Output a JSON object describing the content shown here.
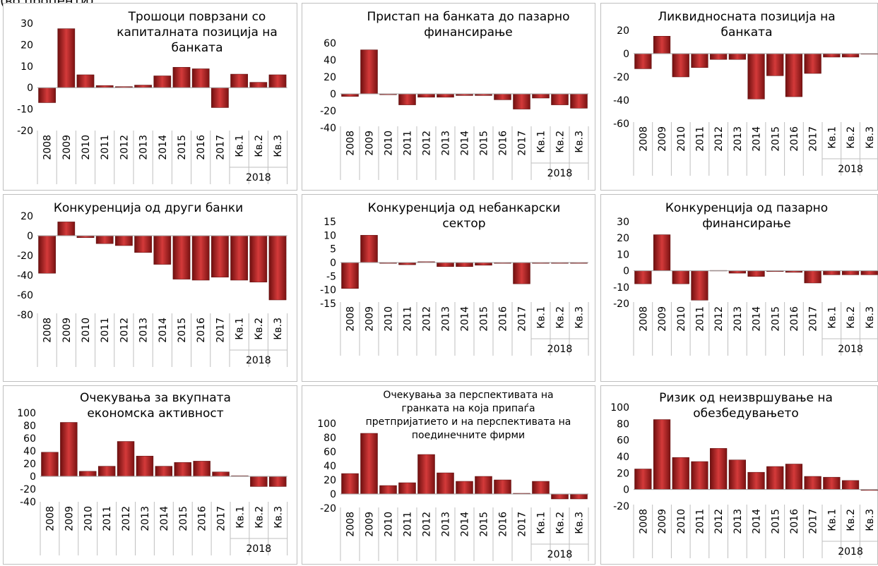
{
  "page_caption": "(во проценти)",
  "chart_data": [
    {
      "type": "bar",
      "title": [
        "Трошоци поврзани со",
        "капиталната позиција на банката"
      ],
      "categories": [
        "2008",
        "2009",
        "2010",
        "2011",
        "2012",
        "2013",
        "2014",
        "2015",
        "2016",
        "2017",
        "Кв.1",
        "Кв.2",
        "Кв.3"
      ],
      "group_label": "2018",
      "ylim": [
        -20,
        30
      ],
      "yticks": [
        30,
        20,
        10,
        0,
        -10,
        -20
      ],
      "values": [
        -7,
        27.5,
        6,
        1,
        0.5,
        1.2,
        5.5,
        9.5,
        8.8,
        -9.3,
        6.3,
        2.5,
        6
      ]
    },
    {
      "type": "bar",
      "title": [
        "Пристап на банката до пазарно",
        "финансирање"
      ],
      "categories": [
        "2008",
        "2009",
        "2010",
        "2011",
        "2012",
        "2013",
        "2014",
        "2015",
        "2016",
        "2017",
        "Кв.1",
        "Кв.2",
        "Кв.3"
      ],
      "group_label": "2018",
      "ylim": [
        -40,
        60
      ],
      "yticks": [
        60,
        40,
        20,
        0,
        -20,
        -40
      ],
      "values": [
        -3,
        52,
        -1,
        -13,
        -4,
        -4,
        -2,
        -2,
        -7,
        -18,
        -5,
        -13,
        -17
      ]
    },
    {
      "type": "bar",
      "title": [
        "Ликвидносната позиција на",
        "банката"
      ],
      "categories": [
        "2008",
        "2009",
        "2010",
        "2011",
        "2012",
        "2013",
        "2014",
        "2015",
        "2016",
        "2017",
        "Кв.1",
        "Кв.2",
        "Кв.3"
      ],
      "group_label": "2018",
      "ylim": [
        -60,
        20
      ],
      "yticks": [
        20,
        0,
        -20,
        -40,
        -60
      ],
      "values": [
        -13,
        15,
        -20,
        -12,
        -5,
        -5,
        -39,
        -19,
        -37,
        -17,
        -3,
        -3,
        -0.5
      ]
    },
    {
      "type": "bar",
      "title": [
        "Конкуренција од други банки"
      ],
      "categories": [
        "2008",
        "2009",
        "2010",
        "2011",
        "2012",
        "2013",
        "2014",
        "2015",
        "2016",
        "2017",
        "Кв.1",
        "Кв.2",
        "Кв.3"
      ],
      "group_label": "2018",
      "ylim": [
        -80,
        20
      ],
      "yticks": [
        20,
        0,
        -20,
        -40,
        -60,
        -80
      ],
      "values": [
        -38,
        14,
        -2,
        -8,
        -10,
        -17,
        -29,
        -44,
        -45,
        -42,
        -45,
        -47,
        -65
      ]
    },
    {
      "type": "bar",
      "title": [
        "Конкуренција од небанкарски",
        "сектор"
      ],
      "categories": [
        "2008",
        "2009",
        "2010",
        "2011",
        "2012",
        "2013",
        "2014",
        "2015",
        "2016",
        "2017",
        "Кв.1",
        "Кв.2",
        "Кв.3"
      ],
      "group_label": "2018",
      "ylim": [
        -15,
        15
      ],
      "yticks": [
        15,
        10,
        5,
        0,
        -5,
        -10,
        -15
      ],
      "values": [
        -9.5,
        10,
        -0.3,
        -0.8,
        0.3,
        -1.5,
        -1.5,
        -1,
        -0.3,
        -7.8,
        -0.3,
        -0.3,
        -0.3
      ]
    },
    {
      "type": "bar",
      "title": [
        "Конкуренција од пазарно",
        "финансирање"
      ],
      "categories": [
        "2008",
        "2009",
        "2010",
        "2011",
        "2012",
        "2013",
        "2014",
        "2015",
        "2016",
        "2017",
        "Кв.1",
        "Кв.2",
        "Кв.3"
      ],
      "group_label": "2018",
      "ylim": [
        -20,
        30
      ],
      "yticks": [
        30,
        20,
        10,
        0,
        -10,
        -20
      ],
      "values": [
        -8,
        22,
        -8,
        -18,
        0.2,
        -1.5,
        -3.5,
        -0.5,
        -1,
        -7.5,
        -2.5,
        -2.5,
        -2.5
      ]
    },
    {
      "type": "bar",
      "title": [
        "Очекувања за вкупната",
        "економска активност"
      ],
      "categories": [
        "2008",
        "2009",
        "2010",
        "2011",
        "2012",
        "2013",
        "2014",
        "2015",
        "2016",
        "2017",
        "Кв.1",
        "Кв.2",
        "Кв.3"
      ],
      "group_label": "2018",
      "ylim": [
        -40,
        100
      ],
      "yticks": [
        100,
        80,
        60,
        40,
        20,
        0,
        -20,
        -40
      ],
      "values": [
        38,
        85,
        8,
        16,
        55,
        32,
        16,
        22,
        24,
        7,
        1,
        -16,
        -16
      ]
    },
    {
      "type": "bar",
      "title": [
        "Очекувања за перспективата на",
        "гранката на која припаѓа",
        "претпријатието и на перспективата на",
        "поединечните фирми"
      ],
      "categories": [
        "2008",
        "2009",
        "2010",
        "2011",
        "2012",
        "2013",
        "2014",
        "2015",
        "2016",
        "2017",
        "Кв.1",
        "Кв.2",
        "Кв.3"
      ],
      "group_label": "2018",
      "ylim": [
        -20,
        100
      ],
      "yticks": [
        100,
        80,
        60,
        40,
        20,
        0,
        -20
      ],
      "values": [
        29,
        86,
        12,
        16,
        56,
        30,
        18,
        25,
        20,
        1,
        18,
        -7,
        -7
      ]
    },
    {
      "type": "bar",
      "title": [
        "Ризик од неизвршување на",
        "обезбедувањето"
      ],
      "categories": [
        "2008",
        "2009",
        "2010",
        "2011",
        "2012",
        "2013",
        "2014",
        "2015",
        "2016",
        "2017",
        "Кв.1",
        "Кв.2",
        "Кв.3"
      ],
      "group_label": "2018",
      "ylim": [
        -20,
        100
      ],
      "yticks": [
        100,
        80,
        60,
        40,
        20,
        0,
        -20
      ],
      "values": [
        25,
        85,
        39,
        34,
        50,
        36,
        21,
        28,
        31,
        16,
        15,
        11,
        -1
      ]
    }
  ]
}
